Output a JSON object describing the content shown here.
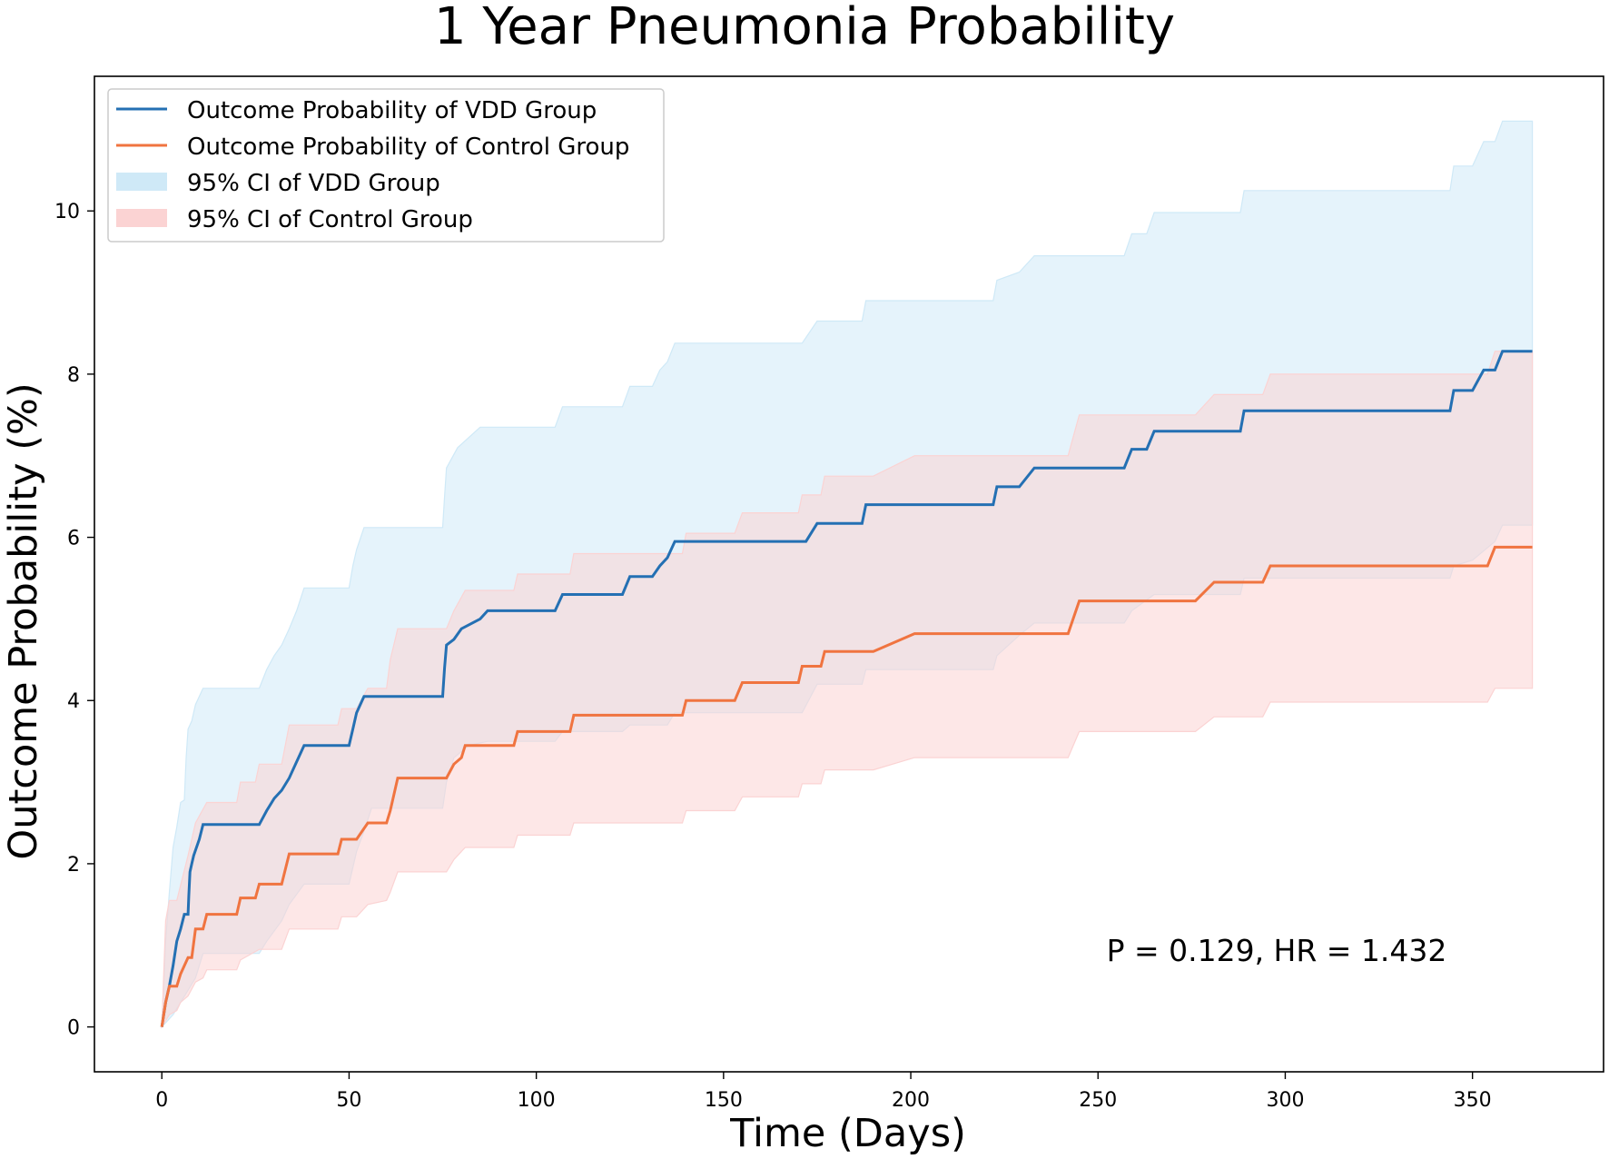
{
  "chart_data": {
    "type": "line",
    "title": "1 Year Pneumonia Probability",
    "xlabel": "Time (Days)",
    "ylabel": "Outcome Probability (%)",
    "xlim": [
      -18,
      385
    ],
    "ylim": [
      -0.55,
      11.65
    ],
    "xticks": [
      0,
      50,
      100,
      150,
      200,
      250,
      300,
      350
    ],
    "yticks": [
      0,
      2,
      4,
      6,
      8,
      10
    ],
    "grid": false,
    "legend_position": "upper-left",
    "legend": [
      {
        "label": "Outcome Probability of VDD Group",
        "kind": "line",
        "color": "#2470b3"
      },
      {
        "label": "Outcome Probability of Control Group",
        "kind": "line",
        "color": "#f07440"
      },
      {
        "label": "95% CI of VDD Group",
        "kind": "band",
        "color": "#cfe9f7"
      },
      {
        "label": "95% CI of Control Group",
        "kind": "band",
        "color": "#fbd3d3"
      }
    ],
    "annotation": "P = 0.129, HR = 1.432",
    "series": [
      {
        "name": "Outcome Probability of VDD Group",
        "kind": "step",
        "color": "#2470b3",
        "points": [
          [
            0,
            0
          ],
          [
            1,
            0.3
          ],
          [
            2,
            0.5
          ],
          [
            3,
            0.75
          ],
          [
            4,
            1.05
          ],
          [
            5,
            1.2
          ],
          [
            6,
            1.38
          ],
          [
            7,
            1.38
          ],
          [
            7.2,
            1.6
          ],
          [
            7.5,
            1.9
          ],
          [
            8,
            2.0
          ],
          [
            8.5,
            2.1
          ],
          [
            10,
            2.3
          ],
          [
            11,
            2.48
          ],
          [
            26,
            2.48
          ],
          [
            28,
            2.65
          ],
          [
            30,
            2.8
          ],
          [
            32,
            2.9
          ],
          [
            34,
            3.05
          ],
          [
            36,
            3.25
          ],
          [
            38,
            3.45
          ],
          [
            50,
            3.45
          ],
          [
            51,
            3.65
          ],
          [
            52,
            3.85
          ],
          [
            54,
            4.05
          ],
          [
            75,
            4.05
          ],
          [
            75.5,
            4.4
          ],
          [
            76,
            4.68
          ],
          [
            78,
            4.75
          ],
          [
            80,
            4.88
          ],
          [
            85,
            5.0
          ],
          [
            87,
            5.1
          ],
          [
            105,
            5.1
          ],
          [
            107,
            5.3
          ],
          [
            123,
            5.3
          ],
          [
            125,
            5.52
          ],
          [
            131,
            5.52
          ],
          [
            133,
            5.65
          ],
          [
            135,
            5.75
          ],
          [
            137,
            5.95
          ],
          [
            172,
            5.95
          ],
          [
            175,
            6.17
          ],
          [
            187,
            6.17
          ],
          [
            188,
            6.4
          ],
          [
            222,
            6.4
          ],
          [
            223,
            6.62
          ],
          [
            229,
            6.62
          ],
          [
            233,
            6.85
          ],
          [
            257,
            6.85
          ],
          [
            259,
            7.08
          ],
          [
            263,
            7.08
          ],
          [
            265,
            7.3
          ],
          [
            288,
            7.3
          ],
          [
            289,
            7.55
          ],
          [
            344,
            7.55
          ],
          [
            345,
            7.8
          ],
          [
            350,
            7.8
          ],
          [
            353,
            8.05
          ],
          [
            356,
            8.05
          ],
          [
            358,
            8.28
          ],
          [
            366,
            8.28
          ]
        ]
      },
      {
        "name": "Outcome Probability of Control Group",
        "kind": "step",
        "color": "#f07440",
        "points": [
          [
            0,
            0
          ],
          [
            1,
            0.3
          ],
          [
            2,
            0.5
          ],
          [
            4,
            0.5
          ],
          [
            5,
            0.65
          ],
          [
            7,
            0.85
          ],
          [
            8,
            0.85
          ],
          [
            9,
            1.2
          ],
          [
            11,
            1.2
          ],
          [
            12,
            1.38
          ],
          [
            20,
            1.38
          ],
          [
            21,
            1.58
          ],
          [
            25,
            1.58
          ],
          [
            26,
            1.75
          ],
          [
            32,
            1.75
          ],
          [
            34,
            2.12
          ],
          [
            47,
            2.12
          ],
          [
            48,
            2.3
          ],
          [
            52,
            2.3
          ],
          [
            55,
            2.5
          ],
          [
            60,
            2.5
          ],
          [
            61,
            2.65
          ],
          [
            63,
            3.05
          ],
          [
            76,
            3.05
          ],
          [
            78,
            3.22
          ],
          [
            80,
            3.3
          ],
          [
            81,
            3.45
          ],
          [
            94,
            3.45
          ],
          [
            95,
            3.62
          ],
          [
            109,
            3.62
          ],
          [
            110,
            3.82
          ],
          [
            139,
            3.82
          ],
          [
            140,
            4.0
          ],
          [
            153,
            4.0
          ],
          [
            155,
            4.22
          ],
          [
            170,
            4.22
          ],
          [
            171,
            4.42
          ],
          [
            176,
            4.42
          ],
          [
            177,
            4.6
          ],
          [
            190,
            4.6
          ],
          [
            201,
            4.82
          ],
          [
            242,
            4.82
          ],
          [
            245,
            5.22
          ],
          [
            276,
            5.22
          ],
          [
            281,
            5.45
          ],
          [
            294,
            5.45
          ],
          [
            296,
            5.65
          ],
          [
            354,
            5.65
          ],
          [
            356,
            5.88
          ],
          [
            366,
            5.88
          ]
        ]
      }
    ],
    "bands": [
      {
        "name": "95% CI of VDD Group",
        "color": "#cfe9f7",
        "upper": [
          [
            0,
            0
          ],
          [
            1,
            1.05
          ],
          [
            2,
            1.65
          ],
          [
            3,
            2.2
          ],
          [
            4,
            2.45
          ],
          [
            5,
            2.75
          ],
          [
            6,
            2.78
          ],
          [
            6.5,
            3.3
          ],
          [
            7,
            3.65
          ],
          [
            8,
            3.75
          ],
          [
            9,
            3.95
          ],
          [
            11,
            4.15
          ],
          [
            26,
            4.15
          ],
          [
            28,
            4.38
          ],
          [
            30,
            4.55
          ],
          [
            32,
            4.68
          ],
          [
            34,
            4.88
          ],
          [
            36,
            5.1
          ],
          [
            38,
            5.38
          ],
          [
            50,
            5.38
          ],
          [
            51,
            5.65
          ],
          [
            52,
            5.85
          ],
          [
            54,
            6.12
          ],
          [
            75,
            6.12
          ],
          [
            75.5,
            6.5
          ],
          [
            76,
            6.85
          ],
          [
            79,
            7.1
          ],
          [
            85,
            7.35
          ],
          [
            105,
            7.35
          ],
          [
            107,
            7.6
          ],
          [
            123,
            7.6
          ],
          [
            125,
            7.85
          ],
          [
            131,
            7.85
          ],
          [
            133,
            8.05
          ],
          [
            135,
            8.15
          ],
          [
            137,
            8.38
          ],
          [
            171,
            8.38
          ],
          [
            175,
            8.65
          ],
          [
            187,
            8.65
          ],
          [
            188,
            8.9
          ],
          [
            222,
            8.9
          ],
          [
            223,
            9.15
          ],
          [
            229,
            9.25
          ],
          [
            233,
            9.45
          ],
          [
            257,
            9.45
          ],
          [
            259,
            9.72
          ],
          [
            263,
            9.72
          ],
          [
            265,
            9.98
          ],
          [
            288,
            9.98
          ],
          [
            289,
            10.25
          ],
          [
            344,
            10.25
          ],
          [
            345,
            10.55
          ],
          [
            350,
            10.55
          ],
          [
            353,
            10.85
          ],
          [
            356,
            10.85
          ],
          [
            358,
            11.1
          ],
          [
            366,
            11.1
          ]
        ],
        "lower": [
          [
            0,
            0
          ],
          [
            1,
            0.05
          ],
          [
            3,
            0.15
          ],
          [
            5,
            0.3
          ],
          [
            7,
            0.45
          ],
          [
            9,
            0.6
          ],
          [
            11,
            0.9
          ],
          [
            26,
            0.9
          ],
          [
            28,
            1.05
          ],
          [
            32,
            1.3
          ],
          [
            34,
            1.5
          ],
          [
            38,
            1.75
          ],
          [
            50,
            1.75
          ],
          [
            52,
            2.15
          ],
          [
            54,
            2.4
          ],
          [
            56,
            2.68
          ],
          [
            75,
            2.68
          ],
          [
            76,
            3.0
          ],
          [
            78,
            3.3
          ],
          [
            82,
            3.45
          ],
          [
            87,
            3.5
          ],
          [
            105,
            3.5
          ],
          [
            107,
            3.62
          ],
          [
            123,
            3.62
          ],
          [
            125,
            3.7
          ],
          [
            135,
            3.7
          ],
          [
            137,
            3.85
          ],
          [
            171,
            3.85
          ],
          [
            175,
            4.2
          ],
          [
            187,
            4.2
          ],
          [
            188,
            4.38
          ],
          [
            222,
            4.38
          ],
          [
            223,
            4.55
          ],
          [
            229,
            4.8
          ],
          [
            233,
            4.95
          ],
          [
            257,
            4.95
          ],
          [
            259,
            5.1
          ],
          [
            265,
            5.3
          ],
          [
            288,
            5.3
          ],
          [
            289,
            5.5
          ],
          [
            344,
            5.5
          ],
          [
            345,
            5.65
          ],
          [
            350,
            5.72
          ],
          [
            356,
            5.95
          ],
          [
            358,
            6.15
          ],
          [
            366,
            6.15
          ]
        ]
      },
      {
        "name": "95% CI of Control Group",
        "color": "#fbd3d3",
        "upper": [
          [
            0,
            0
          ],
          [
            1,
            1.3
          ],
          [
            2,
            1.55
          ],
          [
            4,
            1.55
          ],
          [
            7,
            2.1
          ],
          [
            9,
            2.5
          ],
          [
            12,
            2.75
          ],
          [
            20,
            2.75
          ],
          [
            21,
            3.0
          ],
          [
            25,
            3.0
          ],
          [
            26,
            3.22
          ],
          [
            32,
            3.22
          ],
          [
            34,
            3.7
          ],
          [
            47,
            3.7
          ],
          [
            48,
            3.9
          ],
          [
            52,
            3.9
          ],
          [
            55,
            4.15
          ],
          [
            60,
            4.15
          ],
          [
            61,
            4.5
          ],
          [
            63,
            4.88
          ],
          [
            76,
            4.88
          ],
          [
            78,
            5.1
          ],
          [
            81,
            5.35
          ],
          [
            94,
            5.35
          ],
          [
            95,
            5.55
          ],
          [
            109,
            5.55
          ],
          [
            110,
            5.8
          ],
          [
            139,
            5.8
          ],
          [
            140,
            6.05
          ],
          [
            153,
            6.05
          ],
          [
            155,
            6.3
          ],
          [
            170,
            6.3
          ],
          [
            171,
            6.52
          ],
          [
            176,
            6.52
          ],
          [
            177,
            6.75
          ],
          [
            190,
            6.75
          ],
          [
            201,
            7.0
          ],
          [
            242,
            7.0
          ],
          [
            245,
            7.5
          ],
          [
            276,
            7.5
          ],
          [
            281,
            7.75
          ],
          [
            294,
            7.75
          ],
          [
            296,
            8.0
          ],
          [
            354,
            8.0
          ],
          [
            356,
            8.28
          ],
          [
            366,
            8.28
          ]
        ],
        "lower": [
          [
            0,
            0
          ],
          [
            2,
            0.15
          ],
          [
            4,
            0.2
          ],
          [
            5,
            0.3
          ],
          [
            7,
            0.38
          ],
          [
            9,
            0.55
          ],
          [
            11,
            0.6
          ],
          [
            12,
            0.7
          ],
          [
            20,
            0.7
          ],
          [
            21,
            0.82
          ],
          [
            26,
            0.95
          ],
          [
            32,
            0.95
          ],
          [
            34,
            1.2
          ],
          [
            47,
            1.2
          ],
          [
            48,
            1.35
          ],
          [
            52,
            1.35
          ],
          [
            55,
            1.5
          ],
          [
            60,
            1.55
          ],
          [
            61,
            1.65
          ],
          [
            63,
            1.9
          ],
          [
            76,
            1.9
          ],
          [
            78,
            2.05
          ],
          [
            81,
            2.2
          ],
          [
            94,
            2.2
          ],
          [
            95,
            2.35
          ],
          [
            109,
            2.35
          ],
          [
            110,
            2.5
          ],
          [
            139,
            2.5
          ],
          [
            140,
            2.65
          ],
          [
            153,
            2.65
          ],
          [
            155,
            2.82
          ],
          [
            170,
            2.82
          ],
          [
            171,
            2.98
          ],
          [
            176,
            2.98
          ],
          [
            177,
            3.15
          ],
          [
            190,
            3.15
          ],
          [
            201,
            3.3
          ],
          [
            242,
            3.3
          ],
          [
            245,
            3.62
          ],
          [
            276,
            3.62
          ],
          [
            281,
            3.8
          ],
          [
            294,
            3.8
          ],
          [
            296,
            3.98
          ],
          [
            354,
            3.98
          ],
          [
            356,
            4.15
          ],
          [
            366,
            4.15
          ]
        ]
      }
    ]
  }
}
